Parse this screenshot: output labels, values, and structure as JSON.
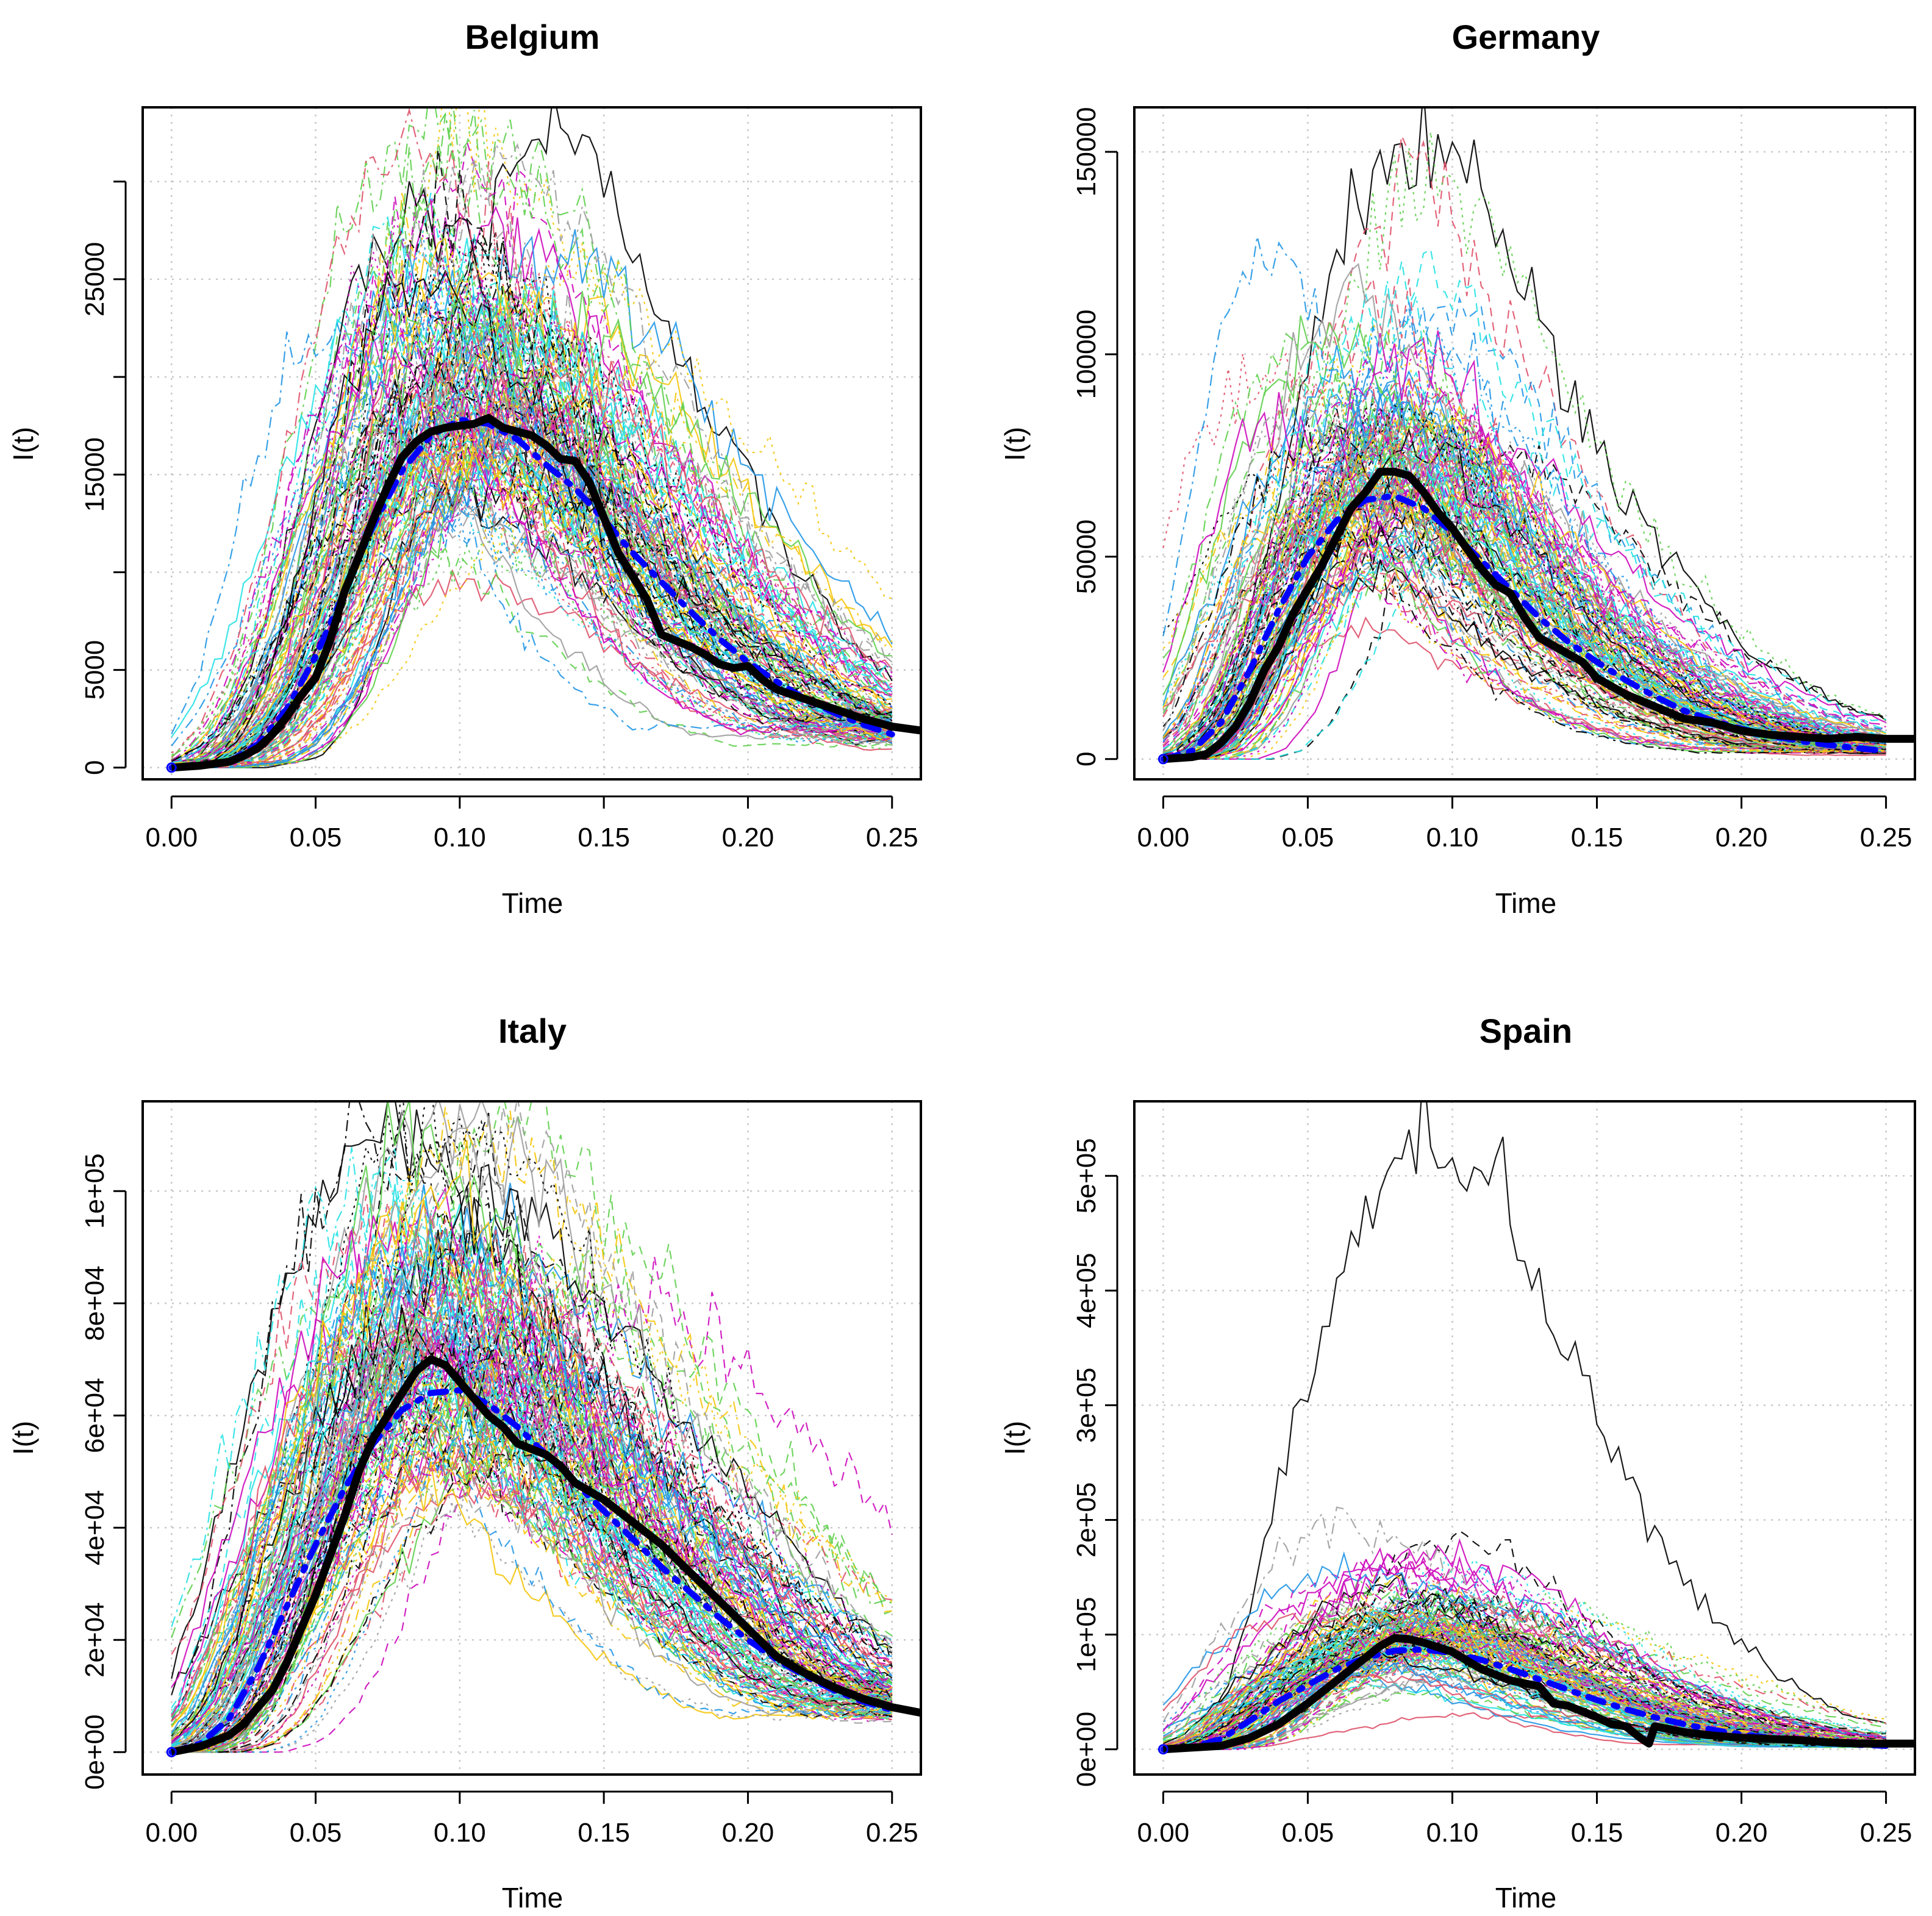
{
  "figure": {
    "background": "#ffffff",
    "ensemble_palette": [
      "#000000",
      "#df536b",
      "#61d04f",
      "#2297e6",
      "#28e2e5",
      "#cd0bbc",
      "#f5c710",
      "#9e9e9e"
    ]
  },
  "chart_data": [
    {
      "type": "line",
      "title": "Belgium",
      "xlabel": "Time",
      "ylabel": "I(t)",
      "xlim": [
        -0.01,
        0.26
      ],
      "ylim": [
        -600,
        33800
      ],
      "grid": true,
      "xticks": [
        0.0,
        0.05,
        0.1,
        0.15,
        0.2,
        0.25
      ],
      "xtick_labels": [
        "0.00",
        "0.05",
        "0.10",
        "0.15",
        "0.20",
        "0.25"
      ],
      "yticks": [
        0,
        5000,
        15000,
        25000
      ],
      "ytick_labels": [
        "0",
        "5000",
        "15000",
        "25000"
      ],
      "ytick_marks": [
        0,
        5000,
        10000,
        15000,
        20000,
        25000,
        30000
      ],
      "ensemble": {
        "n_runs": 160,
        "peak_time": 0.105,
        "peak_min": 9500,
        "peak_max": 32500,
        "peak_median": 19500
      },
      "series": [
        {
          "name": "observed (thick black)",
          "color": "#000000",
          "style": "solid",
          "width": "thick",
          "x": [
            0.0,
            0.01,
            0.02,
            0.025,
            0.03,
            0.035,
            0.04,
            0.045,
            0.05,
            0.055,
            0.06,
            0.065,
            0.07,
            0.075,
            0.08,
            0.085,
            0.09,
            0.095,
            0.1,
            0.105,
            0.11,
            0.115,
            0.12,
            0.125,
            0.13,
            0.135,
            0.14,
            0.145,
            0.15,
            0.155,
            0.16,
            0.165,
            0.17,
            0.175,
            0.18,
            0.185,
            0.19,
            0.195,
            0.2,
            0.205,
            0.21,
            0.22,
            0.23,
            0.24,
            0.25,
            0.26
          ],
          "values": [
            0,
            100,
            300,
            600,
            1000,
            1700,
            2600,
            3700,
            4600,
            6500,
            9000,
            10800,
            12700,
            14400,
            15900,
            16700,
            17200,
            17400,
            17500,
            17600,
            17900,
            17400,
            17200,
            17000,
            16500,
            15800,
            15700,
            14600,
            12800,
            11000,
            9800,
            8600,
            6800,
            6500,
            6200,
            5800,
            5300,
            5100,
            5200,
            4500,
            4000,
            3500,
            3000,
            2500,
            2100,
            1900
          ]
        },
        {
          "name": "model mean (blue dash-dot)",
          "color": "#0000ff",
          "style": "dashdot",
          "width": "thick",
          "x": [
            0.0,
            0.02,
            0.03,
            0.04,
            0.05,
            0.06,
            0.07,
            0.08,
            0.09,
            0.1,
            0.11,
            0.12,
            0.13,
            0.14,
            0.15,
            0.16,
            0.17,
            0.18,
            0.19,
            0.2,
            0.21,
            0.22,
            0.23,
            0.24,
            0.25
          ],
          "values": [
            0,
            300,
            1200,
            3000,
            5700,
            9000,
            12400,
            15200,
            17000,
            17800,
            17600,
            16800,
            15500,
            14300,
            12700,
            11000,
            9500,
            8000,
            6600,
            5400,
            4400,
            3500,
            2800,
            2200,
            1700
          ]
        }
      ]
    },
    {
      "type": "line",
      "title": "Germany",
      "xlabel": "Time",
      "ylabel": "I(t)",
      "xlim": [
        -0.01,
        0.26
      ],
      "ylim": [
        -5000,
        161000
      ],
      "grid": true,
      "xticks": [
        0.0,
        0.05,
        0.1,
        0.15,
        0.2,
        0.25
      ],
      "xtick_labels": [
        "0.00",
        "0.05",
        "0.10",
        "0.15",
        "0.20",
        "0.25"
      ],
      "yticks": [
        0,
        50000,
        100000,
        150000
      ],
      "ytick_labels": [
        "0",
        "50000",
        "100000",
        "150000"
      ],
      "ytick_marks": [
        0,
        50000,
        100000,
        150000
      ],
      "ensemble": {
        "n_runs": 160,
        "peak_time": 0.08,
        "peak_min": 32000,
        "peak_max": 153000,
        "peak_median": 75000
      },
      "series": [
        {
          "name": "observed (thick black)",
          "color": "#000000",
          "style": "solid",
          "width": "thick",
          "x": [
            0.0,
            0.01,
            0.015,
            0.02,
            0.025,
            0.03,
            0.035,
            0.04,
            0.045,
            0.05,
            0.055,
            0.06,
            0.065,
            0.07,
            0.075,
            0.08,
            0.085,
            0.09,
            0.095,
            0.1,
            0.105,
            0.11,
            0.115,
            0.12,
            0.125,
            0.13,
            0.135,
            0.14,
            0.145,
            0.15,
            0.16,
            0.17,
            0.18,
            0.19,
            0.2,
            0.21,
            0.22,
            0.23,
            0.24,
            0.25,
            0.26
          ],
          "values": [
            0,
            500,
            1200,
            4000,
            8000,
            14000,
            22000,
            28000,
            36000,
            42000,
            48000,
            55000,
            62000,
            66000,
            71000,
            71000,
            70000,
            66000,
            61000,
            57000,
            52000,
            47000,
            43000,
            41000,
            35000,
            30000,
            28000,
            26000,
            24000,
            20000,
            16000,
            13000,
            10000,
            9000,
            7000,
            6000,
            5500,
            5000,
            5500,
            5000,
            5000
          ]
        },
        {
          "name": "model mean (blue dash-dot)",
          "color": "#0000ff",
          "style": "dashdot",
          "width": "thick",
          "x": [
            0.0,
            0.01,
            0.02,
            0.03,
            0.04,
            0.05,
            0.06,
            0.07,
            0.08,
            0.09,
            0.1,
            0.11,
            0.12,
            0.13,
            0.14,
            0.15,
            0.16,
            0.17,
            0.18,
            0.19,
            0.2,
            0.21,
            0.22,
            0.23,
            0.24,
            0.25
          ],
          "values": [
            0,
            2000,
            9000,
            22000,
            37000,
            50000,
            59000,
            64000,
            65000,
            62000,
            56000,
            49000,
            42000,
            35000,
            29000,
            24000,
            19500,
            15500,
            12000,
            9500,
            7500,
            5800,
            4500,
            3500,
            2700,
            2000
          ]
        }
      ]
    },
    {
      "type": "line",
      "title": "Italy",
      "xlabel": "Time",
      "ylabel": "I(t)",
      "xlim": [
        -0.01,
        0.26
      ],
      "ylim": [
        -4000,
        116000
      ],
      "grid": true,
      "xticks": [
        0.0,
        0.05,
        0.1,
        0.15,
        0.2,
        0.25
      ],
      "xtick_labels": [
        "0.00",
        "0.05",
        "0.10",
        "0.15",
        "0.20",
        "0.25"
      ],
      "yticks": [
        0,
        20000,
        40000,
        60000,
        80000,
        100000
      ],
      "ytick_labels": [
        "0e+00",
        "2e+04",
        "4e+04",
        "6e+04",
        "8e+04",
        "1e+05"
      ],
      "ytick_marks": [
        0,
        20000,
        40000,
        60000,
        80000,
        100000
      ],
      "ensemble": {
        "n_runs": 160,
        "peak_time": 0.097,
        "peak_min": 46000,
        "peak_max": 111000,
        "peak_median": 72000
      },
      "series": [
        {
          "name": "observed (thick black)",
          "color": "#000000",
          "style": "solid",
          "width": "thick",
          "x": [
            0.0,
            0.01,
            0.02,
            0.025,
            0.03,
            0.035,
            0.04,
            0.045,
            0.05,
            0.055,
            0.06,
            0.065,
            0.07,
            0.075,
            0.08,
            0.085,
            0.09,
            0.095,
            0.1,
            0.105,
            0.11,
            0.115,
            0.12,
            0.125,
            0.13,
            0.135,
            0.14,
            0.15,
            0.16,
            0.17,
            0.18,
            0.19,
            0.2,
            0.21,
            0.22,
            0.23,
            0.24,
            0.25,
            0.26
          ],
          "values": [
            0,
            1000,
            3000,
            5000,
            8000,
            11000,
            16000,
            22000,
            28000,
            35000,
            42000,
            50000,
            56000,
            60000,
            64000,
            68000,
            70000,
            69000,
            66000,
            63000,
            60000,
            58000,
            55000,
            54000,
            53000,
            51000,
            48000,
            45000,
            41000,
            37000,
            32000,
            27000,
            22000,
            17000,
            14000,
            11500,
            9500,
            8000,
            7000
          ]
        },
        {
          "name": "model mean (blue dash-dot)",
          "color": "#0000ff",
          "style": "dashdot",
          "width": "thick",
          "x": [
            0.0,
            0.01,
            0.02,
            0.03,
            0.04,
            0.05,
            0.06,
            0.07,
            0.08,
            0.09,
            0.1,
            0.11,
            0.12,
            0.13,
            0.14,
            0.15,
            0.16,
            0.17,
            0.18,
            0.19,
            0.2,
            0.21,
            0.22,
            0.23,
            0.24,
            0.25
          ],
          "values": [
            0,
            1500,
            6000,
            15000,
            26000,
            37000,
            47000,
            55000,
            61000,
            64000,
            64500,
            62000,
            58000,
            53000,
            48000,
            43000,
            38000,
            33000,
            28500,
            24000,
            20000,
            16500,
            13500,
            11000,
            9000,
            7500
          ]
        }
      ]
    },
    {
      "type": "line",
      "title": "Spain",
      "xlabel": "Time",
      "ylabel": "I(t)",
      "xlim": [
        -0.01,
        0.26
      ],
      "ylim": [
        -22000,
        565000
      ],
      "grid": true,
      "xticks": [
        0.0,
        0.05,
        0.1,
        0.15,
        0.2,
        0.25
      ],
      "xtick_labels": [
        "0.00",
        "0.05",
        "0.10",
        "0.15",
        "0.20",
        "0.25"
      ],
      "yticks": [
        0,
        100000,
        200000,
        300000,
        400000,
        500000
      ],
      "ytick_labels": [
        "0e+00",
        "1e+05",
        "2e+05",
        "3e+05",
        "4e+05",
        "5e+05"
      ],
      "ytick_marks": [
        0,
        100000,
        200000,
        300000,
        400000,
        500000
      ],
      "ensemble": {
        "n_runs": 160,
        "peak_time": 0.09,
        "peak_min": 30000,
        "peak_max": 540000,
        "peak_median": 105000
      },
      "series": [
        {
          "name": "observed (thick black)",
          "color": "#000000",
          "style": "solid",
          "width": "thick",
          "x": [
            0.0,
            0.02,
            0.03,
            0.04,
            0.05,
            0.06,
            0.07,
            0.075,
            0.08,
            0.085,
            0.09,
            0.1,
            0.11,
            0.12,
            0.13,
            0.135,
            0.14,
            0.15,
            0.155,
            0.16,
            0.165,
            0.168,
            0.17,
            0.18,
            0.19,
            0.2,
            0.21,
            0.22,
            0.23,
            0.24,
            0.25,
            0.26
          ],
          "values": [
            0,
            3000,
            10000,
            22000,
            40000,
            60000,
            80000,
            90000,
            97000,
            96000,
            93000,
            85000,
            70000,
            60000,
            55000,
            40000,
            38000,
            28000,
            22000,
            20000,
            10000,
            5000,
            20000,
            15000,
            12000,
            10000,
            9000,
            8000,
            6000,
            5000,
            5000,
            5000
          ]
        },
        {
          "name": "model mean (blue dash-dot)",
          "color": "#0000ff",
          "style": "dashdot",
          "width": "thick",
          "x": [
            0.0,
            0.01,
            0.02,
            0.03,
            0.04,
            0.05,
            0.06,
            0.07,
            0.08,
            0.09,
            0.1,
            0.11,
            0.12,
            0.13,
            0.14,
            0.15,
            0.16,
            0.17,
            0.18,
            0.19,
            0.2,
            0.21,
            0.22,
            0.23,
            0.24,
            0.25
          ],
          "values": [
            0,
            2000,
            9000,
            25000,
            42000,
            56000,
            70000,
            80000,
            86000,
            87000,
            84000,
            78000,
            70000,
            61000,
            52000,
            43000,
            35000,
            28000,
            22000,
            17000,
            13000,
            10000,
            7500,
            5500,
            4000,
            3000
          ]
        }
      ]
    }
  ]
}
